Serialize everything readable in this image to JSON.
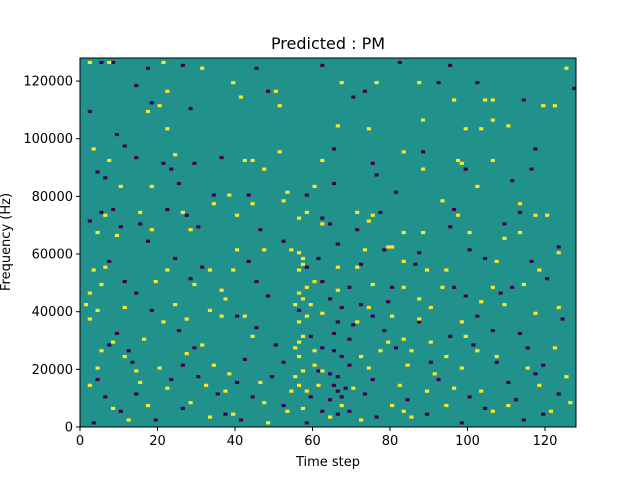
{
  "chart_data": {
    "type": "heatmap",
    "title": "Predicted : PM",
    "xlabel": "Time step",
    "ylabel": "Frequency (Hz)",
    "xlim": [
      0,
      128
    ],
    "ylim": [
      0,
      128000
    ],
    "x_ticks": [
      0,
      20,
      40,
      60,
      80,
      100,
      120
    ],
    "y_ticks": [
      0,
      20000,
      40000,
      60000,
      80000,
      100000,
      120000
    ],
    "x_tick_labels": [
      "0",
      "20",
      "40",
      "60",
      "80",
      "100",
      "120"
    ],
    "y_tick_labels": [
      "0",
      "20000",
      "40000",
      "60000",
      "80000",
      "100000",
      "120000"
    ],
    "n_freq_bins": 128,
    "n_time_steps": 128,
    "grid": false,
    "colormap": "viridis",
    "colors": {
      "background": "#21918c",
      "low": "#440154",
      "high": "#fde725"
    },
    "value_levels": {
      "low": -1,
      "background": 0,
      "high": 1
    },
    "high_cells": [
      [
        2,
        126
      ],
      [
        7,
        126
      ],
      [
        21,
        126
      ],
      [
        31,
        124
      ],
      [
        39,
        119
      ],
      [
        67,
        119
      ],
      [
        76,
        119
      ],
      [
        87,
        119
      ],
      [
        125,
        124
      ],
      [
        22,
        116
      ],
      [
        41,
        114
      ],
      [
        20,
        111
      ],
      [
        51,
        111
      ],
      [
        106,
        113
      ],
      [
        119,
        111
      ],
      [
        96,
        113
      ],
      [
        122,
        111
      ],
      [
        17,
        109
      ],
      [
        50,
        116
      ],
      [
        106,
        106
      ],
      [
        104,
        113
      ],
      [
        22,
        103
      ],
      [
        66,
        104
      ],
      [
        110,
        104
      ],
      [
        74,
        103
      ],
      [
        88,
        106
      ],
      [
        99,
        103
      ],
      [
        103,
        103
      ],
      [
        3,
        96
      ],
      [
        7,
        92
      ],
      [
        24,
        94
      ],
      [
        42,
        92
      ],
      [
        44,
        92
      ],
      [
        51,
        95
      ],
      [
        62,
        92
      ],
      [
        83,
        95
      ],
      [
        97,
        92
      ],
      [
        98,
        91
      ],
      [
        88,
        89
      ],
      [
        47,
        89
      ],
      [
        106,
        92
      ],
      [
        10,
        83
      ],
      [
        18,
        83
      ],
      [
        38,
        80
      ],
      [
        53,
        81
      ],
      [
        60,
        83
      ],
      [
        102,
        83
      ],
      [
        34,
        77
      ],
      [
        44,
        77
      ],
      [
        52,
        78
      ],
      [
        93,
        78
      ],
      [
        113,
        77
      ],
      [
        120,
        73
      ],
      [
        6,
        73
      ],
      [
        15,
        74
      ],
      [
        26,
        74
      ],
      [
        40,
        73
      ],
      [
        56,
        72
      ],
      [
        58,
        74
      ],
      [
        71,
        74
      ],
      [
        75,
        73
      ],
      [
        97,
        73
      ],
      [
        117,
        73
      ],
      [
        4,
        67
      ],
      [
        9,
        66
      ],
      [
        18,
        68
      ],
      [
        28,
        68
      ],
      [
        62,
        70
      ],
      [
        74,
        71
      ],
      [
        83,
        67
      ],
      [
        88,
        67
      ],
      [
        100,
        67
      ],
      [
        109,
        65
      ],
      [
        113,
        67
      ],
      [
        40,
        61
      ],
      [
        47,
        61
      ],
      [
        54,
        61
      ],
      [
        73,
        61
      ],
      [
        79,
        62
      ],
      [
        80,
        62
      ],
      [
        123,
        60
      ],
      [
        3,
        54
      ],
      [
        6,
        55
      ],
      [
        22,
        54
      ],
      [
        33,
        54
      ],
      [
        39,
        54
      ],
      [
        56,
        54
      ],
      [
        57,
        56
      ],
      [
        57,
        58
      ],
      [
        56,
        60
      ],
      [
        66,
        55
      ],
      [
        71,
        55
      ],
      [
        83,
        57
      ],
      [
        89,
        54
      ],
      [
        94,
        54
      ],
      [
        107,
        57
      ],
      [
        118,
        54
      ],
      [
        2,
        46
      ],
      [
        5,
        49
      ],
      [
        19,
        50
      ],
      [
        29,
        49
      ],
      [
        36,
        47
      ],
      [
        56,
        46
      ],
      [
        58,
        48
      ],
      [
        60,
        50
      ],
      [
        66,
        47
      ],
      [
        75,
        49
      ],
      [
        83,
        48
      ],
      [
        93,
        48
      ],
      [
        106,
        48
      ],
      [
        114,
        49
      ],
      [
        1,
        42
      ],
      [
        4,
        40
      ],
      [
        11,
        41
      ],
      [
        24,
        42
      ],
      [
        33,
        40
      ],
      [
        37,
        44
      ],
      [
        55,
        42
      ],
      [
        57,
        44
      ],
      [
        59,
        42
      ],
      [
        74,
        41
      ],
      [
        87,
        44
      ],
      [
        90,
        41
      ],
      [
        103,
        43
      ],
      [
        109,
        42
      ],
      [
        123,
        41
      ],
      [
        2,
        37
      ],
      [
        21,
        36
      ],
      [
        27,
        37
      ],
      [
        36,
        38
      ],
      [
        42,
        38
      ],
      [
        56,
        36
      ],
      [
        58,
        38
      ],
      [
        62,
        39
      ],
      [
        71,
        36
      ],
      [
        80,
        38
      ],
      [
        87,
        37
      ],
      [
        98,
        36
      ],
      [
        117,
        39
      ],
      [
        8,
        29
      ],
      [
        16,
        30
      ],
      [
        44,
        31
      ],
      [
        56,
        29
      ],
      [
        57,
        31
      ],
      [
        79,
        29
      ],
      [
        83,
        30
      ],
      [
        90,
        29
      ],
      [
        99,
        31
      ],
      [
        5,
        26
      ],
      [
        11,
        24
      ],
      [
        27,
        25
      ],
      [
        31,
        28
      ],
      [
        55,
        27
      ],
      [
        56,
        24
      ],
      [
        60,
        26
      ],
      [
        72,
        24
      ],
      [
        77,
        26
      ],
      [
        85,
        26
      ],
      [
        94,
        24
      ],
      [
        102,
        26
      ],
      [
        107,
        24
      ],
      [
        122,
        27
      ],
      [
        4,
        20
      ],
      [
        14,
        19
      ],
      [
        20,
        20
      ],
      [
        34,
        21
      ],
      [
        38,
        18
      ],
      [
        55,
        17
      ],
      [
        57,
        19
      ],
      [
        60,
        21
      ],
      [
        62,
        19
      ],
      [
        74,
        20
      ],
      [
        84,
        21
      ],
      [
        91,
        18
      ],
      [
        98,
        20
      ],
      [
        115,
        20
      ],
      [
        125,
        17
      ],
      [
        2,
        14
      ],
      [
        15,
        15
      ],
      [
        22,
        13
      ],
      [
        32,
        14
      ],
      [
        37,
        12
      ],
      [
        46,
        15
      ],
      [
        54,
        12
      ],
      [
        56,
        14
      ],
      [
        58,
        12
      ],
      [
        61,
        14
      ],
      [
        70,
        13
      ],
      [
        82,
        14
      ],
      [
        89,
        12
      ],
      [
        96,
        13
      ],
      [
        103,
        12
      ],
      [
        118,
        14
      ],
      [
        8,
        6
      ],
      [
        17,
        7
      ],
      [
        28,
        8
      ],
      [
        47,
        8
      ],
      [
        53,
        5
      ],
      [
        57,
        6
      ],
      [
        67,
        7
      ],
      [
        80,
        7
      ],
      [
        83,
        5
      ],
      [
        94,
        7
      ],
      [
        106,
        5
      ],
      [
        110,
        7
      ],
      [
        121,
        5
      ],
      [
        126,
        8
      ],
      [
        12,
        2
      ],
      [
        33,
        3
      ],
      [
        39,
        4
      ],
      [
        48,
        1
      ],
      [
        64,
        3
      ],
      [
        72,
        2
      ],
      [
        85,
        3
      ]
    ],
    "low_cells": [
      [
        5,
        126
      ],
      [
        8,
        126
      ],
      [
        17,
        124
      ],
      [
        26,
        125
      ],
      [
        45,
        124
      ],
      [
        62,
        125
      ],
      [
        82,
        126
      ],
      [
        95,
        125
      ],
      [
        14,
        118
      ],
      [
        48,
        116
      ],
      [
        73,
        116
      ],
      [
        92,
        119
      ],
      [
        102,
        119
      ],
      [
        127,
        117
      ],
      [
        2,
        109
      ],
      [
        18,
        112
      ],
      [
        28,
        110
      ],
      [
        70,
        114
      ],
      [
        114,
        113
      ],
      [
        88,
        106
      ],
      [
        9,
        101
      ],
      [
        11,
        97
      ],
      [
        14,
        93
      ],
      [
        21,
        91
      ],
      [
        29,
        91
      ],
      [
        36,
        93
      ],
      [
        65,
        96
      ],
      [
        75,
        91
      ],
      [
        88,
        95
      ],
      [
        117,
        96
      ],
      [
        4,
        88
      ],
      [
        23,
        89
      ],
      [
        25,
        84
      ],
      [
        65,
        84
      ],
      [
        76,
        87
      ],
      [
        99,
        89
      ],
      [
        116,
        89
      ],
      [
        6,
        86
      ],
      [
        34,
        80
      ],
      [
        43,
        80
      ],
      [
        58,
        80
      ],
      [
        81,
        81
      ],
      [
        111,
        85
      ],
      [
        5,
        74
      ],
      [
        8,
        75
      ],
      [
        22,
        75
      ],
      [
        27,
        73
      ],
      [
        62,
        72
      ],
      [
        77,
        74
      ],
      [
        96,
        75
      ],
      [
        113,
        74
      ],
      [
        2,
        71
      ],
      [
        10,
        69
      ],
      [
        15,
        70
      ],
      [
        30,
        69
      ],
      [
        46,
        68
      ],
      [
        64,
        70
      ],
      [
        71,
        68
      ],
      [
        95,
        69
      ],
      [
        109,
        70
      ],
      [
        17,
        64
      ],
      [
        52,
        64
      ],
      [
        66,
        63
      ],
      [
        78,
        61
      ],
      [
        87,
        60
      ],
      [
        100,
        61
      ],
      [
        123,
        62
      ],
      [
        7,
        57
      ],
      [
        24,
        58
      ],
      [
        31,
        55
      ],
      [
        43,
        57
      ],
      [
        58,
        55
      ],
      [
        61,
        58
      ],
      [
        72,
        56
      ],
      [
        86,
        56
      ],
      [
        104,
        58
      ],
      [
        116,
        57
      ],
      [
        11,
        50
      ],
      [
        28,
        51
      ],
      [
        45,
        50
      ],
      [
        62,
        50
      ],
      [
        69,
        48
      ],
      [
        80,
        48
      ],
      [
        96,
        48
      ],
      [
        111,
        48
      ],
      [
        120,
        51
      ],
      [
        14,
        46
      ],
      [
        37,
        44
      ],
      [
        48,
        45
      ],
      [
        64,
        44
      ],
      [
        67,
        41
      ],
      [
        72,
        42
      ],
      [
        79,
        43
      ],
      [
        99,
        45
      ],
      [
        108,
        46
      ],
      [
        18,
        40
      ],
      [
        40,
        38
      ],
      [
        56,
        40
      ],
      [
        66,
        36
      ],
      [
        70,
        35
      ],
      [
        75,
        38
      ],
      [
        87,
        36
      ],
      [
        102,
        38
      ],
      [
        124,
        37
      ],
      [
        9,
        32
      ],
      [
        25,
        33
      ],
      [
        45,
        34
      ],
      [
        59,
        31
      ],
      [
        65,
        32
      ],
      [
        69,
        30
      ],
      [
        78,
        33
      ],
      [
        95,
        31
      ],
      [
        106,
        33
      ],
      [
        113,
        32
      ],
      [
        7,
        28
      ],
      [
        12,
        26
      ],
      [
        29,
        27
      ],
      [
        50,
        28
      ],
      [
        62,
        27
      ],
      [
        65,
        26
      ],
      [
        67,
        24
      ],
      [
        81,
        27
      ],
      [
        101,
        28
      ],
      [
        115,
        27
      ],
      [
        13,
        22
      ],
      [
        26,
        21
      ],
      [
        42,
        23
      ],
      [
        52,
        22
      ],
      [
        61,
        19
      ],
      [
        64,
        18
      ],
      [
        66,
        17
      ],
      [
        69,
        21
      ],
      [
        90,
        22
      ],
      [
        107,
        22
      ],
      [
        119,
        21
      ],
      [
        4,
        16
      ],
      [
        23,
        16
      ],
      [
        30,
        17
      ],
      [
        40,
        15
      ],
      [
        49,
        17
      ],
      [
        65,
        14
      ],
      [
        66,
        12
      ],
      [
        68,
        13
      ],
      [
        75,
        16
      ],
      [
        92,
        16
      ],
      [
        110,
        15
      ],
      [
        117,
        18
      ],
      [
        6,
        10
      ],
      [
        14,
        11
      ],
      [
        35,
        11
      ],
      [
        44,
        10
      ],
      [
        59,
        10
      ],
      [
        64,
        9
      ],
      [
        67,
        10
      ],
      [
        73,
        11
      ],
      [
        84,
        9
      ],
      [
        100,
        10
      ],
      [
        112,
        9
      ],
      [
        123,
        11
      ],
      [
        10,
        5
      ],
      [
        26,
        6
      ],
      [
        37,
        4
      ],
      [
        52,
        7
      ],
      [
        62,
        5
      ],
      [
        66,
        4
      ],
      [
        69,
        5
      ],
      [
        89,
        4
      ],
      [
        104,
        6
      ],
      [
        119,
        4
      ],
      [
        3,
        1
      ],
      [
        19,
        2
      ],
      [
        41,
        2
      ],
      [
        58,
        1
      ],
      [
        76,
        3
      ],
      [
        98,
        1
      ],
      [
        114,
        2
      ]
    ]
  }
}
